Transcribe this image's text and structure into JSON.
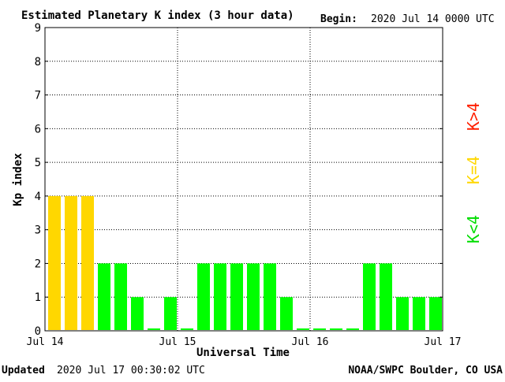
{
  "header": {
    "title": "Estimated Planetary K index (3 hour data)",
    "begin_label": "Begin:",
    "begin_value": "2020 Jul 14 0000 UTC"
  },
  "footer": {
    "updated_label": "Updated",
    "updated_value": "2020 Jul 17 00:30:02 UTC",
    "source": "NOAA/SWPC Boulder, CO USA"
  },
  "legend": {
    "high": "K>4",
    "equal": "K=4",
    "low": "K<4"
  },
  "colors": {
    "low": "#00ff00",
    "equal": "#ffd700",
    "high": "#ff2000",
    "grid": "#000000"
  },
  "chart_data": {
    "type": "bar",
    "title": "Estimated Planetary K index (3 hour data)",
    "xlabel": "Universal Time",
    "ylabel": "Kp index",
    "ylim": [
      0,
      9
    ],
    "yticks": [
      "0",
      "1",
      "2",
      "3",
      "4",
      "5",
      "6",
      "7",
      "8",
      "9"
    ],
    "xticks": [
      "Jul 14",
      "Jul 15",
      "Jul 16",
      "Jul 17"
    ],
    "bars_per_day": 8,
    "days": 3,
    "grid": true,
    "values": [
      4,
      4,
      4,
      2,
      2,
      1,
      0.07,
      1,
      0.07,
      2,
      2,
      2,
      2,
      2,
      1,
      0.07,
      0.07,
      0.07,
      0.07,
      2,
      2,
      1,
      1,
      1
    ]
  }
}
